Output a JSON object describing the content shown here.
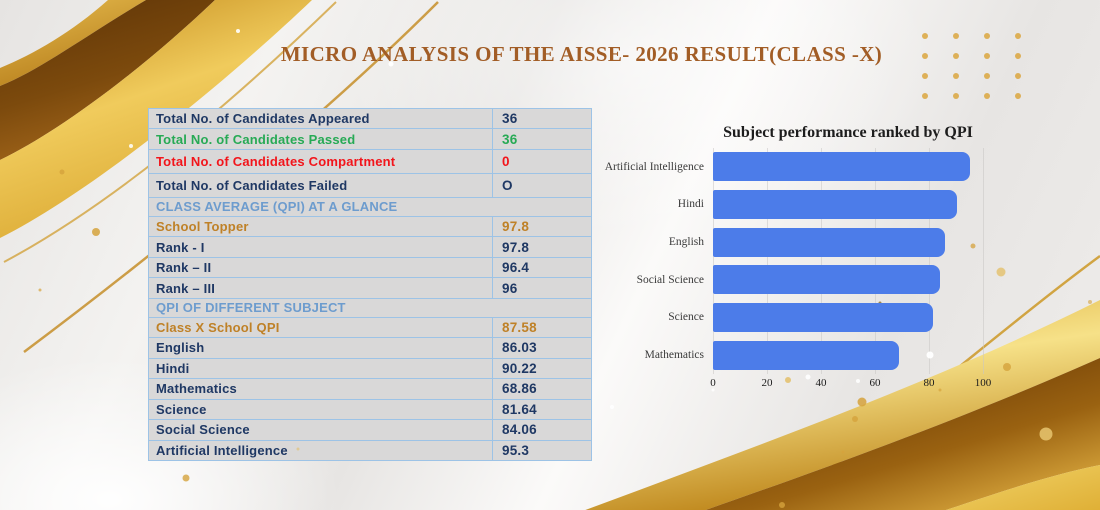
{
  "page": {
    "title": "MICRO ANALYSIS OF THE AISSE- 2026 RESULT(CLASS -X)"
  },
  "table": {
    "rows": [
      {
        "type": "data",
        "label": "Total No. of Candidates Appeared",
        "value": "36",
        "color": "navy"
      },
      {
        "type": "data",
        "label": "Total No. of Candidates Passed",
        "value": "36",
        "color": "green"
      },
      {
        "type": "data",
        "label": "Total No. of Candidates Compartment",
        "value": "0",
        "color": "red",
        "tall": true
      },
      {
        "type": "data",
        "label": "Total No. of Candidates Failed",
        "value": "O",
        "color": "navy",
        "tall": true
      },
      {
        "type": "section",
        "label": "CLASS AVERAGE (QPI) AT A GLANCE"
      },
      {
        "type": "data",
        "label": "School Topper",
        "value": "97.8",
        "color": "orange"
      },
      {
        "type": "data",
        "label": "Rank - I",
        "value": "97.8",
        "color": "navy"
      },
      {
        "type": "data",
        "label": "Rank – II",
        "value": "96.4",
        "color": "navy"
      },
      {
        "type": "data",
        "label": "Rank – III",
        "value": "96",
        "color": "navy"
      },
      {
        "type": "section",
        "label": "QPI OF DIFFERENT SUBJECT"
      },
      {
        "type": "data",
        "label": "Class X School QPI",
        "value": "87.58",
        "color": "orange"
      },
      {
        "type": "data",
        "label": "English",
        "value": "86.03",
        "color": "navy"
      },
      {
        "type": "data",
        "label": "Hindi",
        "value": "90.22",
        "color": "navy"
      },
      {
        "type": "data",
        "label": "Mathematics",
        "value": "68.86",
        "color": "navy"
      },
      {
        "type": "data",
        "label": "Science",
        "value": "81.64",
        "color": "navy"
      },
      {
        "type": "data",
        "label": "Social Science",
        "value": "84.06",
        "color": "navy"
      },
      {
        "type": "data",
        "label": "Artificial Intelligence",
        "value": "95.3",
        "color": "navy"
      }
    ]
  },
  "chart_data": {
    "type": "bar",
    "orientation": "horizontal",
    "title": "Subject performance ranked by QPI",
    "categories": [
      "Artificial Intelligence",
      "Hindi",
      "English",
      "Social Science",
      "Science",
      "Mathematics"
    ],
    "values": [
      95.3,
      90.22,
      86.03,
      84.06,
      81.64,
      68.86
    ],
    "xlabel": "",
    "ylabel": "",
    "xlim": [
      0,
      100
    ],
    "xticks": [
      0,
      20,
      40,
      60,
      80,
      100
    ],
    "grid": true,
    "legend": false,
    "bar_color": "#4c7ce9"
  },
  "colors": {
    "navy": "#1f3864",
    "green": "#27aa55",
    "red": "#f2151b",
    "orange": "#bf8127",
    "section_blue": "#6d9cce",
    "title_bronze": "#a25d26",
    "bar_blue": "#4c7ce9",
    "table_border": "#9dc3e6",
    "table_bg": "#d9d8d8",
    "gold": "#d5a23c"
  }
}
